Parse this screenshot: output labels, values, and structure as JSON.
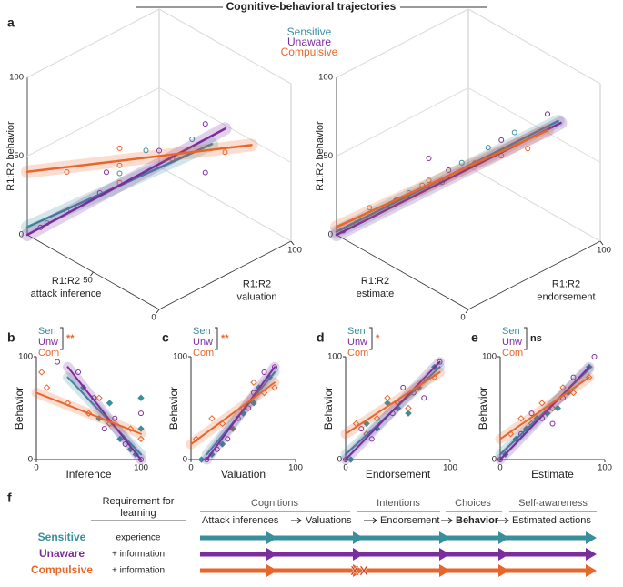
{
  "title": "Cognitive-behavioral trajectories",
  "legend": {
    "names": [
      "Sensitive",
      "Unaware",
      "Compulsive"
    ],
    "colors": [
      "#3a8f9c",
      "#7b2d9e",
      "#e8662a"
    ]
  },
  "chart_data": [
    {
      "type": "scatter3d",
      "panel": "a",
      "ylabel": "R1:R2 behavior",
      "xlabel": [
        "R1:R2",
        "attack inference"
      ],
      "zlabel": [
        "R1:R2",
        "valuation"
      ],
      "xlim": [
        0,
        100
      ],
      "zlim": [
        0,
        100
      ],
      "ylim": [
        0,
        100
      ],
      "xticks": [
        0,
        50
      ],
      "zticks": [
        100
      ],
      "yticks": [
        0,
        50,
        100
      ],
      "series": [
        {
          "name": "Sensitive",
          "color": "#3a8f9c",
          "points": [
            [
              80,
              10,
              20
            ],
            [
              60,
              30,
              45
            ],
            [
              40,
              50,
              55
            ],
            [
              90,
              5,
              10
            ],
            [
              50,
              40,
              60
            ],
            [
              30,
              55,
              70
            ]
          ],
          "fit": [
            [
              100,
              0,
              5
            ],
            [
              25,
              65,
              65
            ]
          ]
        },
        {
          "name": "Unaware",
          "color": "#7b2d9e",
          "points": [
            [
              95,
              5,
              5
            ],
            [
              70,
              25,
              30
            ],
            [
              45,
              45,
              60
            ],
            [
              25,
              60,
              80
            ],
            [
              60,
              20,
              50
            ],
            [
              35,
              70,
              40
            ]
          ],
          "fit": [
            [
              100,
              0,
              0
            ],
            [
              20,
              70,
              75
            ]
          ]
        },
        {
          "name": "Compulsive",
          "color": "#e8662a",
          "points": [
            [
              80,
              10,
              45
            ],
            [
              60,
              30,
              50
            ],
            [
              40,
              50,
              55
            ],
            [
              20,
              70,
              60
            ],
            [
              70,
              40,
              30
            ],
            [
              50,
              20,
              70
            ]
          ],
          "fit": [
            [
              100,
              0,
              40
            ],
            [
              10,
              80,
              65
            ]
          ]
        }
      ]
    },
    {
      "type": "scatter3d",
      "panel": "",
      "ylabel": "R1:R2 behavior",
      "xlabel": [
        "R1:R2",
        "estimate"
      ],
      "zlabel": [
        "R1:R2",
        "endorsement"
      ],
      "xlim": [
        0,
        100
      ],
      "zlim": [
        0,
        100
      ],
      "ylim": [
        0,
        100
      ],
      "xticks": [
        0
      ],
      "zticks": [
        100
      ],
      "yticks": [
        0,
        50,
        100
      ],
      "series": [
        {
          "name": "Sensitive",
          "color": "#3a8f9c",
          "points": [
            [
              90,
              5,
              10
            ],
            [
              70,
              25,
              30
            ],
            [
              50,
              45,
              50
            ],
            [
              30,
              65,
              70
            ],
            [
              60,
              40,
              35
            ],
            [
              40,
              55,
              60
            ]
          ],
          "fit": [
            [
              100,
              0,
              2
            ],
            [
              20,
              88,
              72
            ]
          ]
        },
        {
          "name": "Unaware",
          "color": "#7b2d9e",
          "points": [
            [
              95,
              0,
              5
            ],
            [
              75,
              20,
              25
            ],
            [
              55,
              40,
              45
            ],
            [
              35,
              60,
              65
            ],
            [
              20,
              80,
              80
            ],
            [
              65,
              35,
              50
            ]
          ],
          "fit": [
            [
              100,
              0,
              0
            ],
            [
              20,
              90,
              70
            ]
          ]
        },
        {
          "name": "Compulsive",
          "color": "#e8662a",
          "points": [
            [
              85,
              10,
              20
            ],
            [
              65,
              30,
              35
            ],
            [
              45,
              50,
              50
            ],
            [
              25,
              70,
              60
            ],
            [
              55,
              25,
              45
            ],
            [
              35,
              60,
              55
            ]
          ],
          "fit": [
            [
              100,
              0,
              5
            ],
            [
              25,
              85,
              65
            ]
          ]
        }
      ]
    },
    {
      "type": "scatter",
      "panel": "b",
      "xlabel": "Inference",
      "ylabel": "Behavior",
      "xlim": [
        0,
        100
      ],
      "ylim": [
        0,
        100
      ],
      "xticks": [
        0,
        100
      ],
      "yticks": [
        0,
        100
      ],
      "significance": "**",
      "significance_color": "#e8662a",
      "series": [
        {
          "name": "Sen",
          "color": "#3a8f9c",
          "marker": "diamond-filled",
          "points": [
            [
              95,
              5
            ],
            [
              100,
              30
            ],
            [
              60,
              40
            ],
            [
              80,
              20
            ],
            [
              100,
              60
            ],
            [
              45,
              70
            ],
            [
              90,
              10
            ],
            [
              70,
              55
            ]
          ],
          "fit": [
            [
              30,
              80
            ],
            [
              100,
              5
            ]
          ]
        },
        {
          "name": "Unw",
          "color": "#7b2d9e",
          "marker": "circle-open",
          "points": [
            [
              100,
              0
            ],
            [
              85,
              15
            ],
            [
              55,
              60
            ],
            [
              40,
              85
            ],
            [
              100,
              45
            ],
            [
              65,
              30
            ],
            [
              20,
              95
            ],
            [
              75,
              40
            ]
          ],
          "fit": [
            [
              30,
              90
            ],
            [
              100,
              0
            ]
          ]
        },
        {
          "name": "Com",
          "color": "#e8662a",
          "marker": "diamond-open",
          "points": [
            [
              10,
              70
            ],
            [
              30,
              55
            ],
            [
              50,
              45
            ],
            [
              70,
              35
            ],
            [
              100,
              20
            ],
            [
              5,
              85
            ],
            [
              60,
              60
            ],
            [
              90,
              30
            ]
          ],
          "fit": [
            [
              0,
              65
            ],
            [
              100,
              25
            ]
          ]
        }
      ]
    },
    {
      "type": "scatter",
      "panel": "c",
      "xlabel": "Valuation",
      "ylabel": "Behavior",
      "xlim": [
        0,
        100
      ],
      "ylim": [
        0,
        100
      ],
      "xticks": [
        0,
        100
      ],
      "yticks": [
        0,
        100
      ],
      "significance": "**",
      "significance_color": "#e8662a",
      "series": [
        {
          "name": "Sen",
          "color": "#3a8f9c",
          "marker": "diamond-filled",
          "points": [
            [
              20,
              5
            ],
            [
              40,
              30
            ],
            [
              60,
              55
            ],
            [
              75,
              80
            ],
            [
              30,
              15
            ],
            [
              50,
              45
            ],
            [
              10,
              0
            ],
            [
              65,
              70
            ]
          ],
          "fit": [
            [
              15,
              5
            ],
            [
              80,
              85
            ]
          ]
        },
        {
          "name": "Unw",
          "color": "#7b2d9e",
          "marker": "circle-open",
          "points": [
            [
              15,
              0
            ],
            [
              35,
              20
            ],
            [
              55,
              50
            ],
            [
              70,
              85
            ],
            [
              25,
              10
            ],
            [
              45,
              40
            ],
            [
              60,
              65
            ],
            [
              80,
              90
            ]
          ],
          "fit": [
            [
              15,
              0
            ],
            [
              80,
              90
            ]
          ]
        },
        {
          "name": "Com",
          "color": "#e8662a",
          "marker": "diamond-open",
          "points": [
            [
              5,
              20
            ],
            [
              30,
              35
            ],
            [
              50,
              50
            ],
            [
              70,
              65
            ],
            [
              20,
              40
            ],
            [
              40,
              30
            ],
            [
              60,
              75
            ],
            [
              80,
              70
            ]
          ],
          "fit": [
            [
              0,
              15
            ],
            [
              80,
              75
            ]
          ]
        }
      ]
    },
    {
      "type": "scatter",
      "panel": "d",
      "xlabel": "Endorsement",
      "ylabel": "Behavior",
      "xlim": [
        0,
        100
      ],
      "ylim": [
        0,
        100
      ],
      "xticks": [
        0,
        100
      ],
      "yticks": [
        0,
        100
      ],
      "significance": "*",
      "significance_color": "#e8662a",
      "series": [
        {
          "name": "Sen",
          "color": "#3a8f9c",
          "marker": "diamond-filled",
          "points": [
            [
              5,
              0
            ],
            [
              30,
              30
            ],
            [
              50,
              50
            ],
            [
              70,
              70
            ],
            [
              85,
              90
            ],
            [
              20,
              35
            ],
            [
              60,
              45
            ],
            [
              40,
              55
            ]
          ],
          "fit": [
            [
              0,
              5
            ],
            [
              90,
              90
            ]
          ]
        },
        {
          "name": "Unw",
          "color": "#7b2d9e",
          "marker": "circle-open",
          "points": [
            [
              0,
              0
            ],
            [
              25,
              20
            ],
            [
              45,
              45
            ],
            [
              65,
              65
            ],
            [
              90,
              95
            ],
            [
              15,
              30
            ],
            [
              55,
              70
            ],
            [
              75,
              60
            ]
          ],
          "fit": [
            [
              0,
              0
            ],
            [
              90,
              95
            ]
          ]
        },
        {
          "name": "Com",
          "color": "#e8662a",
          "marker": "diamond-open",
          "points": [
            [
              10,
              35
            ],
            [
              30,
              40
            ],
            [
              50,
              55
            ],
            [
              70,
              70
            ],
            [
              85,
              80
            ],
            [
              20,
              25
            ],
            [
              40,
              60
            ],
            [
              60,
              50
            ]
          ],
          "fit": [
            [
              0,
              25
            ],
            [
              90,
              85
            ]
          ]
        }
      ]
    },
    {
      "type": "scatter",
      "panel": "e",
      "xlabel": "Estimate",
      "ylabel": "Behavior",
      "xlim": [
        0,
        100
      ],
      "ylim": [
        0,
        100
      ],
      "xticks": [
        0,
        100
      ],
      "yticks": [
        0,
        100
      ],
      "significance": "ns",
      "significance_color": "#222222",
      "series": [
        {
          "name": "Sen",
          "color": "#3a8f9c",
          "marker": "diamond-filled",
          "points": [
            [
              5,
              5
            ],
            [
              25,
              30
            ],
            [
              45,
              45
            ],
            [
              65,
              65
            ],
            [
              85,
              90
            ],
            [
              15,
              20
            ],
            [
              55,
              50
            ],
            [
              35,
              40
            ]
          ],
          "fit": [
            [
              0,
              5
            ],
            [
              85,
              88
            ]
          ]
        },
        {
          "name": "Unw",
          "color": "#7b2d9e",
          "marker": "circle-open",
          "points": [
            [
              0,
              0
            ],
            [
              20,
              25
            ],
            [
              40,
              40
            ],
            [
              60,
              60
            ],
            [
              90,
              100
            ],
            [
              30,
              45
            ],
            [
              50,
              35
            ],
            [
              70,
              80
            ]
          ],
          "fit": [
            [
              0,
              0
            ],
            [
              85,
              90
            ]
          ]
        },
        {
          "name": "Com",
          "color": "#e8662a",
          "marker": "diamond-open",
          "points": [
            [
              10,
              25
            ],
            [
              30,
              35
            ],
            [
              50,
              50
            ],
            [
              70,
              65
            ],
            [
              85,
              80
            ],
            [
              20,
              40
            ],
            [
              40,
              55
            ],
            [
              60,
              70
            ]
          ],
          "fit": [
            [
              0,
              20
            ],
            [
              85,
              80
            ]
          ]
        }
      ]
    }
  ],
  "diagram": {
    "panel": "f",
    "requirement_header": [
      "Requirement for",
      "learning"
    ],
    "groups": [
      "Cognitions",
      "Intentions",
      "Choices",
      "Self-awareness"
    ],
    "stages": [
      "Attack inferences",
      "Valuations",
      "Endorsement",
      "Behavior",
      "Estimated actions"
    ],
    "rows": [
      {
        "name": "Sensitive",
        "requirement": "experience",
        "color": "#3a8f9c"
      },
      {
        "name": "Unaware",
        "requirement": "+ information",
        "color": "#7b2d9e"
      },
      {
        "name": "Compulsive",
        "requirement": "+ information",
        "color": "#e8662a",
        "block": "XX"
      }
    ]
  }
}
